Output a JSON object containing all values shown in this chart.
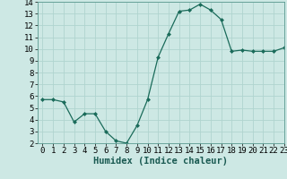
{
  "x": [
    0,
    1,
    2,
    3,
    4,
    5,
    6,
    7,
    8,
    9,
    10,
    11,
    12,
    13,
    14,
    15,
    16,
    17,
    18,
    19,
    20,
    21,
    22,
    23
  ],
  "y": [
    5.7,
    5.7,
    5.5,
    3.8,
    4.5,
    4.5,
    3.0,
    2.2,
    2.0,
    3.5,
    5.7,
    9.3,
    11.3,
    13.2,
    13.3,
    13.8,
    13.3,
    12.5,
    9.8,
    9.9,
    9.8,
    9.8,
    9.8,
    10.1
  ],
  "xlabel": "Humidex (Indice chaleur)",
  "line_color": "#1a6b5a",
  "marker": "D",
  "marker_size": 2,
  "bg_color": "#cde8e4",
  "grid_color": "#b0d4cf",
  "ylim": [
    2,
    14
  ],
  "xlim": [
    -0.5,
    23
  ],
  "yticks": [
    2,
    3,
    4,
    5,
    6,
    7,
    8,
    9,
    10,
    11,
    12,
    13,
    14
  ],
  "xticks": [
    0,
    1,
    2,
    3,
    4,
    5,
    6,
    7,
    8,
    9,
    10,
    11,
    12,
    13,
    14,
    15,
    16,
    17,
    18,
    19,
    20,
    21,
    22,
    23
  ],
  "xlabel_fontsize": 7.5,
  "tick_fontsize": 6.5
}
